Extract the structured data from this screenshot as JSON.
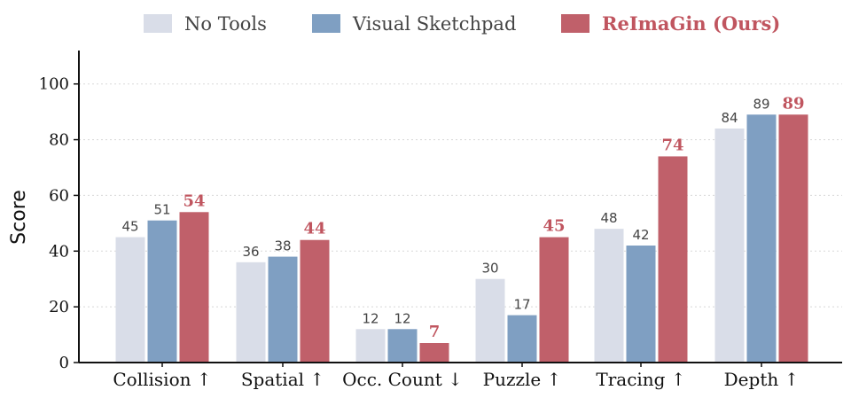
{
  "chart_data": {
    "type": "bar",
    "title": "",
    "xlabel": "",
    "ylabel": "Score",
    "ylim": [
      0,
      112
    ],
    "yticks": [
      0,
      20,
      40,
      60,
      80,
      100
    ],
    "grid": "horizontal-dotted",
    "legend_position": "top",
    "categories": [
      "Collision ↑",
      "Spatial ↑",
      "Occ. Count ↓",
      "Puzzle ↑",
      "Tracing ↑",
      "Depth ↑"
    ],
    "series": [
      {
        "name": "No Tools",
        "color": "#d9dde8",
        "emphasis": false,
        "values": [
          45,
          36,
          12,
          30,
          48,
          84
        ]
      },
      {
        "name": "Visual Sketchpad",
        "color": "#7f9fc2",
        "emphasis": false,
        "values": [
          51,
          38,
          12,
          17,
          42,
          89
        ]
      },
      {
        "name": "ReImaGin (Ours)",
        "color": "#c0606a",
        "emphasis": true,
        "values": [
          54,
          44,
          7,
          45,
          74,
          89
        ]
      }
    ]
  }
}
